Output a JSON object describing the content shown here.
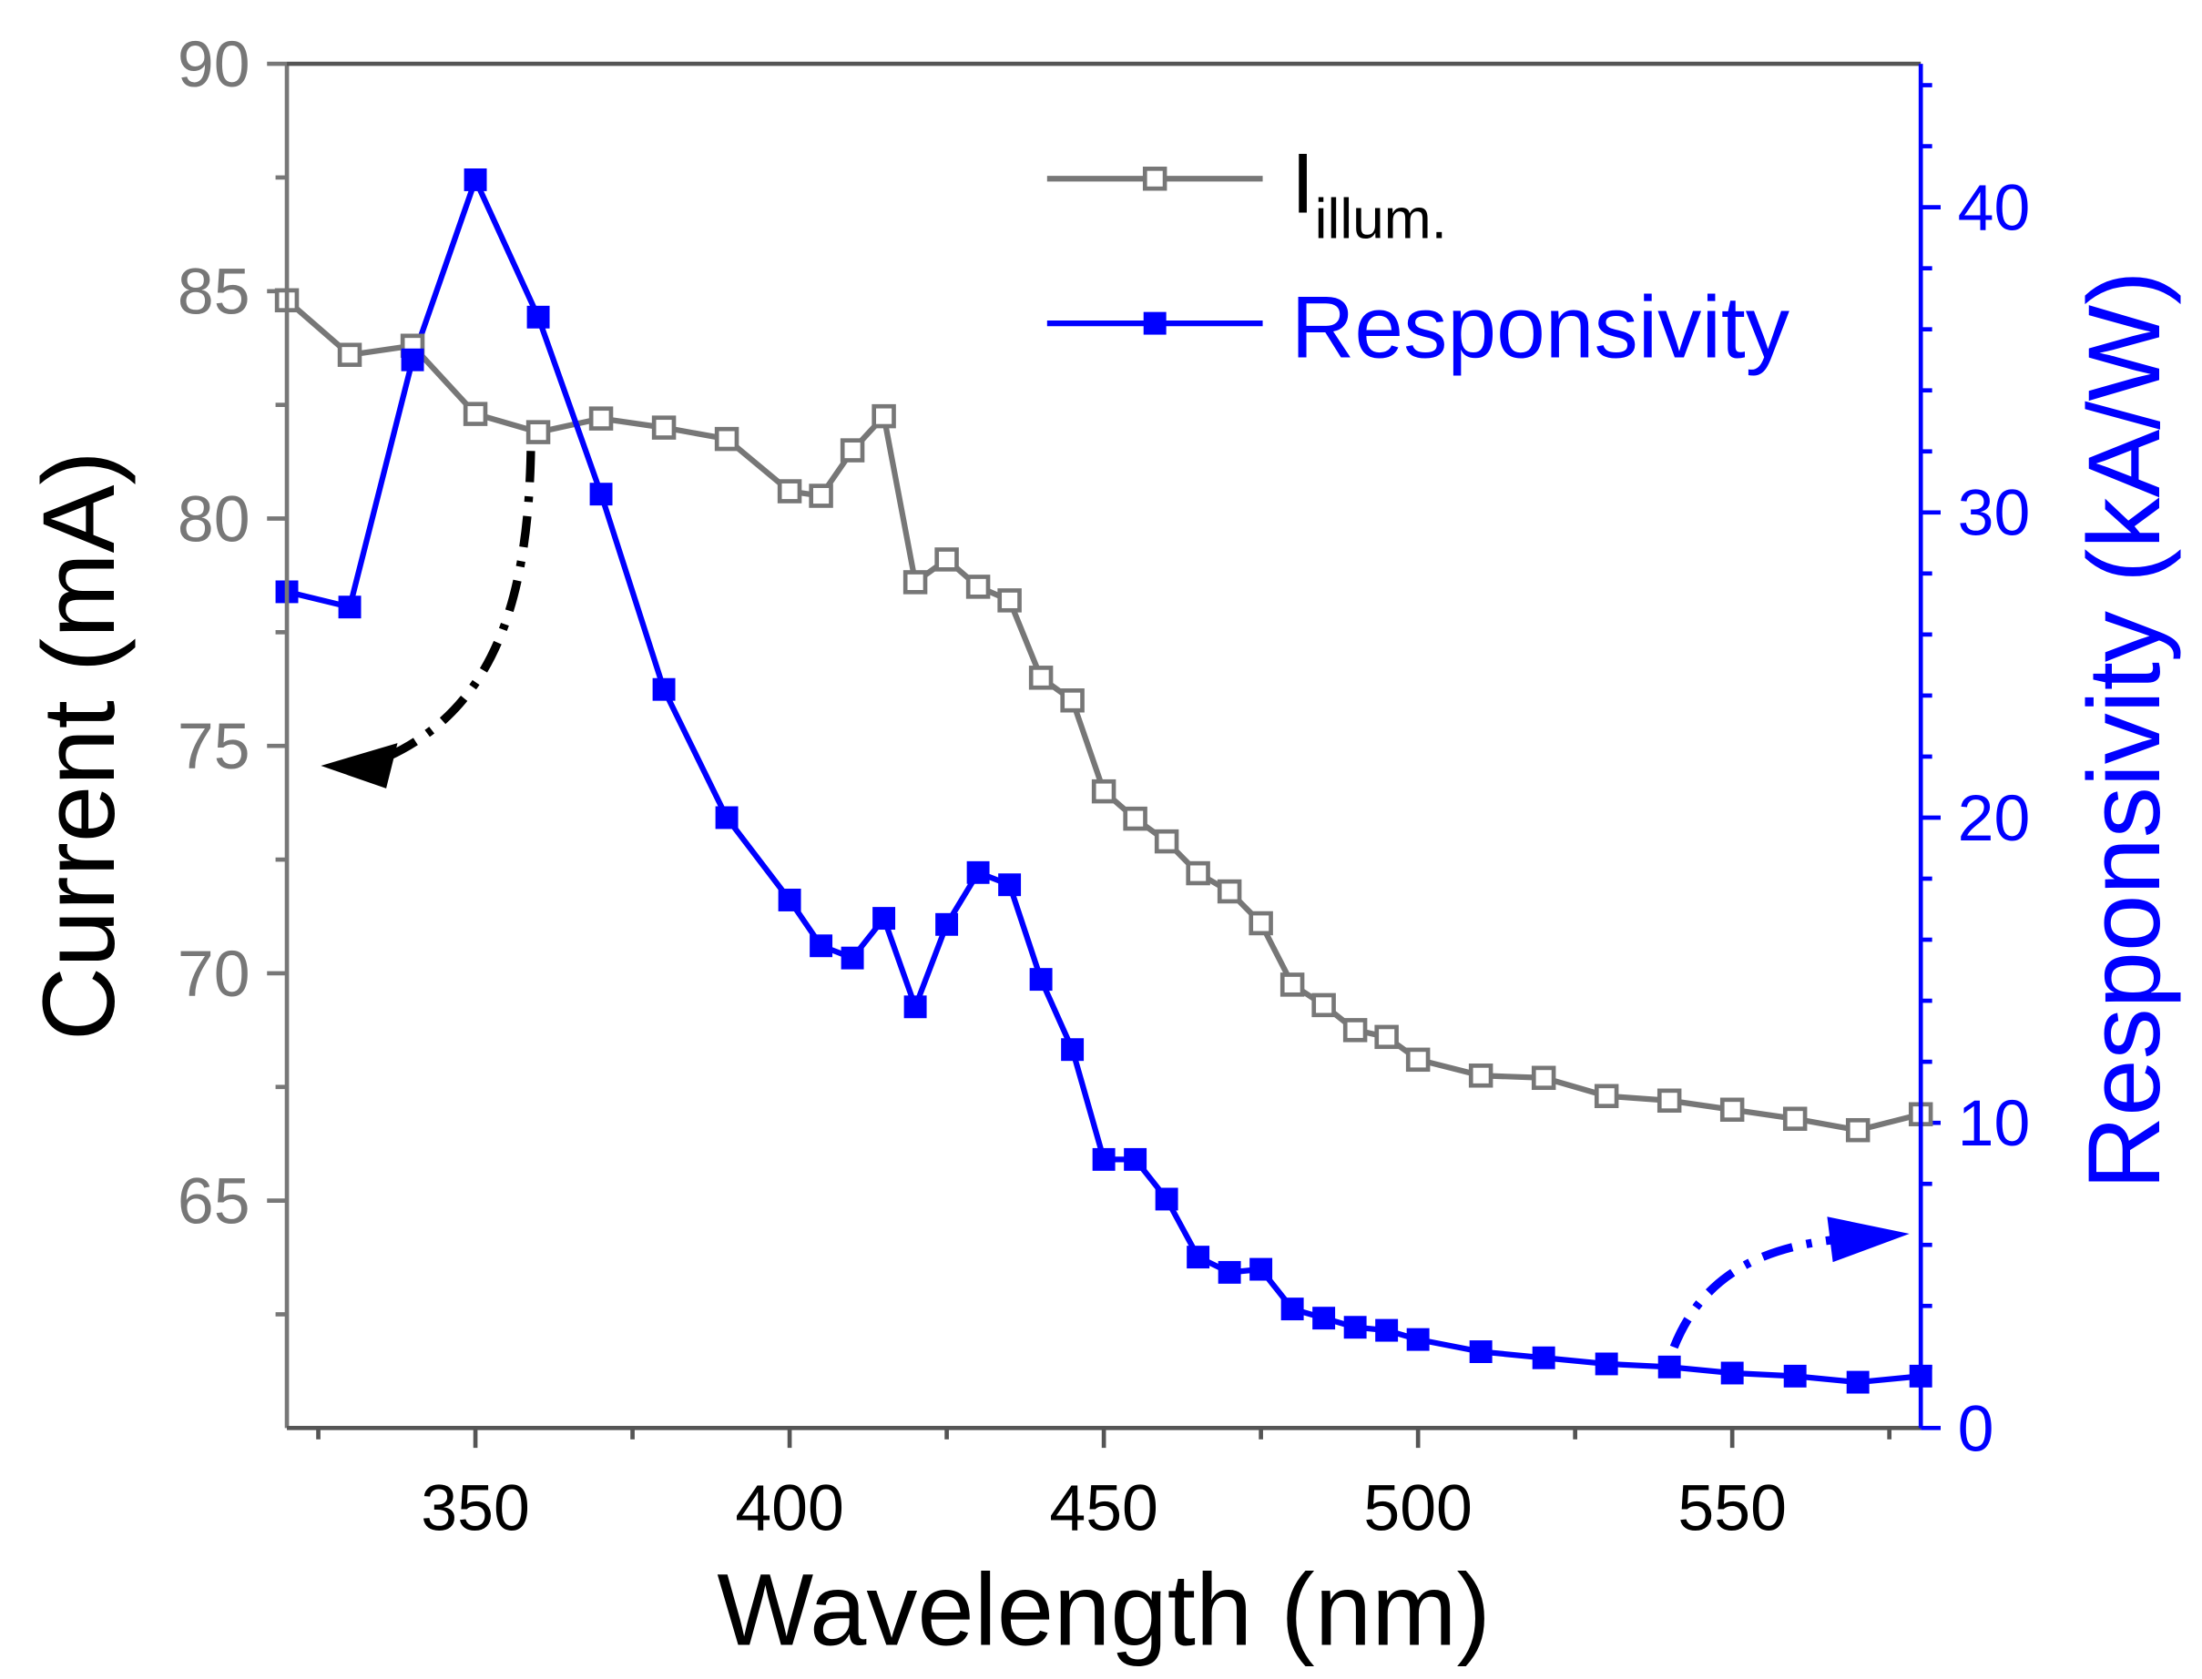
{
  "chart_data": {
    "type": "line",
    "xlabel": "Wavelength (nm)",
    "ylabel": "Current (mA)",
    "y2label": "Responsivity (kA/W)",
    "xlim": [
      320,
      580
    ],
    "ylim": [
      60,
      90
    ],
    "y2lim": [
      0,
      44.7
    ],
    "x_ticks": [
      350,
      400,
      450,
      500,
      550
    ],
    "y_ticks": [
      65,
      70,
      75,
      80,
      85,
      90
    ],
    "y2_ticks": [
      0,
      10,
      20,
      30,
      40
    ],
    "legend_position": "top-right",
    "colors": {
      "current": "#777777",
      "responsivity": "#0000ff",
      "axis": "#555555"
    },
    "x": [
      320,
      330,
      340,
      350,
      360,
      370,
      380,
      390,
      400,
      405,
      410,
      415,
      420,
      425,
      430,
      435,
      440,
      445,
      450,
      455,
      460,
      465,
      470,
      475,
      480,
      485,
      490,
      495,
      500,
      510,
      520,
      530,
      540,
      550,
      560,
      570,
      580
    ],
    "series": [
      {
        "name": "I",
        "subscript": "illum.",
        "axis": "left",
        "marker": "open-square",
        "values": [
          84.8,
          83.6,
          83.8,
          82.3,
          81.9,
          82.2,
          82.0,
          81.75,
          80.6,
          80.5,
          81.5,
          82.25,
          78.6,
          79.1,
          78.5,
          78.2,
          76.5,
          76.0,
          74.0,
          73.4,
          72.9,
          72.2,
          71.8,
          71.1,
          69.75,
          69.3,
          68.75,
          68.6,
          68.1,
          67.75,
          67.7,
          67.3,
          67.2,
          67.0,
          66.8,
          66.55,
          66.9
        ]
      },
      {
        "name": "Responsivity",
        "axis": "right",
        "marker": "filled-square",
        "values": [
          27.4,
          26.9,
          35.0,
          40.9,
          36.4,
          30.6,
          24.2,
          20.0,
          17.3,
          15.8,
          15.4,
          16.7,
          13.8,
          16.5,
          18.2,
          17.8,
          14.7,
          12.4,
          8.8,
          8.8,
          7.5,
          5.6,
          5.1,
          5.2,
          3.9,
          3.6,
          3.3,
          3.2,
          2.9,
          2.5,
          2.3,
          2.1,
          2.0,
          1.8,
          1.7,
          1.5,
          1.7
        ]
      }
    ]
  }
}
